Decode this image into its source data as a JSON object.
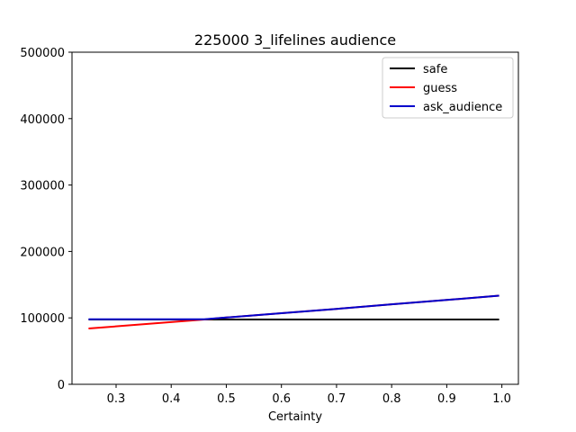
{
  "chart_data": {
    "type": "line",
    "title": "225000 3_lifelines audience",
    "xlabel": "Certainty",
    "ylabel": "",
    "xlim": [
      0.22,
      1.03
    ],
    "ylim": [
      0,
      500000
    ],
    "xticks": [
      0.3,
      0.4,
      0.5,
      0.6,
      0.7,
      0.8,
      0.9,
      1.0
    ],
    "xtick_labels": [
      "0.3",
      "0.4",
      "0.5",
      "0.6",
      "0.7",
      "0.8",
      "0.9",
      "1.0"
    ],
    "yticks": [
      0,
      100000,
      200000,
      300000,
      400000,
      500000
    ],
    "ytick_labels": [
      "0",
      "100000",
      "200000",
      "300000",
      "400000",
      "500000"
    ],
    "grid": false,
    "legend_position": "upper right",
    "series": [
      {
        "name": "safe",
        "color": "#000000",
        "x": [
          0.25,
          0.5,
          0.75,
          0.995
        ],
        "y": [
          97500,
          97500,
          97500,
          97500
        ]
      },
      {
        "name": "guess",
        "color": "#ff0000",
        "x": [
          0.25,
          0.46,
          0.5,
          0.6,
          0.7,
          0.8,
          0.9,
          0.995
        ],
        "y": [
          84000,
          97500,
          100500,
          107000,
          113500,
          120500,
          127000,
          133500
        ]
      },
      {
        "name": "ask_audience",
        "color": "#0000cc",
        "x": [
          0.25,
          0.46,
          0.5,
          0.6,
          0.7,
          0.8,
          0.9,
          0.995
        ],
        "y": [
          98000,
          98000,
          100500,
          107000,
          113500,
          120500,
          127000,
          133500
        ]
      }
    ]
  }
}
